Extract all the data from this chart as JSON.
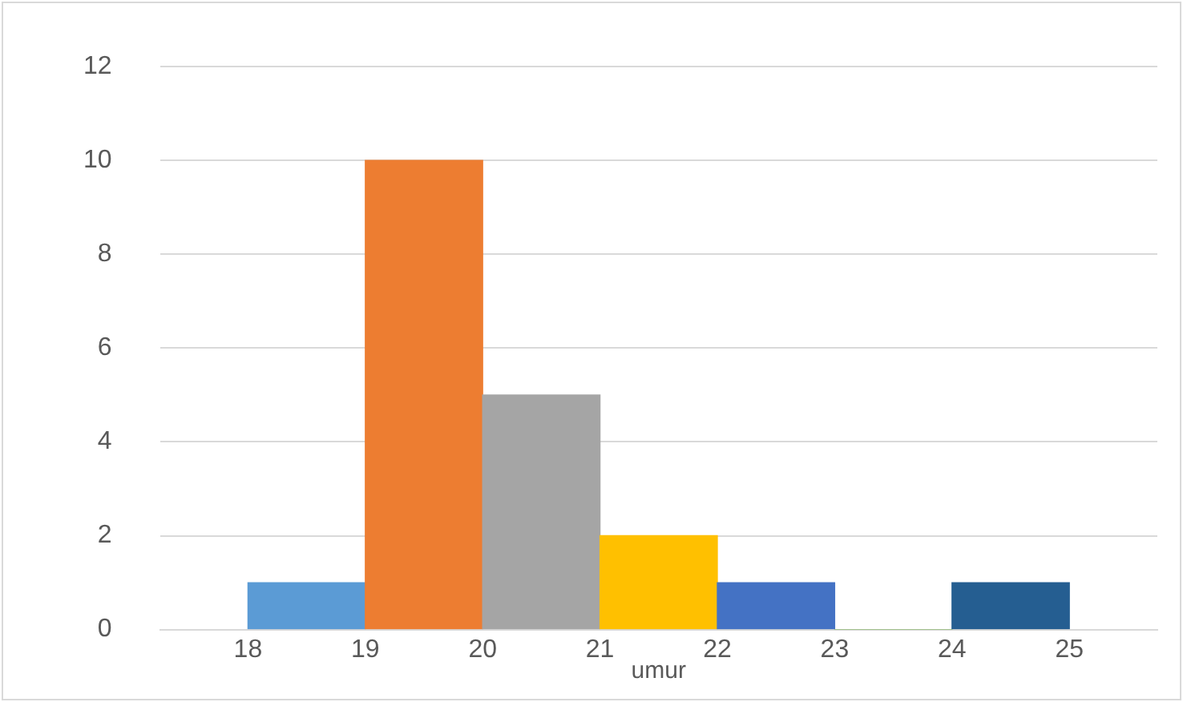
{
  "chart_data": {
    "type": "histogram",
    "xlabel": "umur",
    "bins": [
      18,
      19,
      20,
      21,
      22,
      23,
      24,
      25
    ],
    "values": [
      1,
      10,
      5,
      2,
      1,
      0,
      1
    ],
    "colors": [
      "#5b9bd5",
      "#ed7d31",
      "#a5a5a5",
      "#ffc000",
      "#4472c4",
      "#70ad47",
      "#255e91"
    ],
    "xlim": [
      17.25,
      25.75
    ],
    "xticks": [
      18,
      19,
      20,
      21,
      22,
      23,
      24,
      25
    ],
    "ylim": [
      0,
      12
    ],
    "yticks": [
      0,
      2,
      4,
      6,
      8,
      10,
      12
    ],
    "grid": "y",
    "legend": false
  }
}
